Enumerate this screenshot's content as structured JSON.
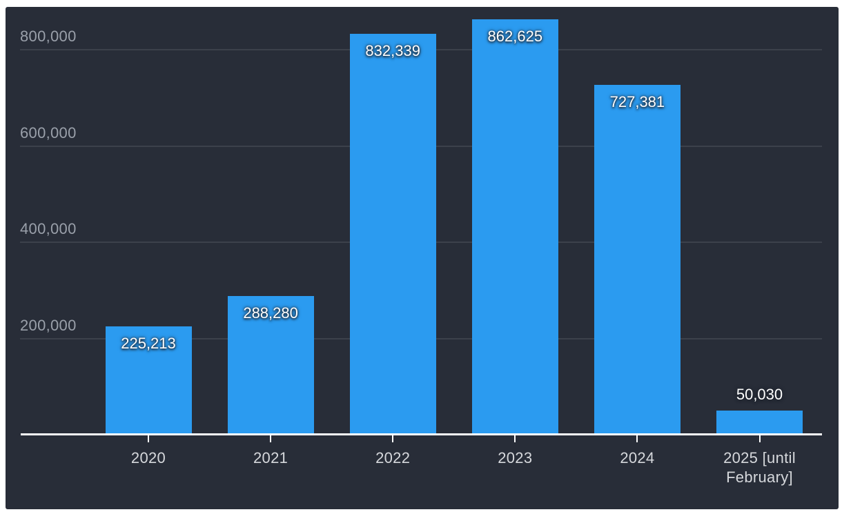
{
  "chart_data": {
    "type": "bar",
    "categories": [
      "2020",
      "2021",
      "2022",
      "2023",
      "2024",
      "2025 [until February]"
    ],
    "values": [
      225213,
      288280,
      832339,
      862625,
      727381,
      50030
    ],
    "value_labels": [
      "225,213",
      "288,280",
      "832,339",
      "862,625",
      "727,381",
      "50,030"
    ],
    "title": "",
    "xlabel": "",
    "ylabel": "",
    "ylim": [
      0,
      880000
    ],
    "grid": true,
    "legend": "none",
    "y_ticks": [
      {
        "value": 200000,
        "label": "200,000"
      },
      {
        "value": 400000,
        "label": "400,000"
      },
      {
        "value": 600000,
        "label": "600,000"
      },
      {
        "value": 800000,
        "label": "800,000"
      }
    ]
  },
  "colors": {
    "frame_background": "#ffffff",
    "panel_background": "#282d38",
    "bar_fill": "#2b9bf0",
    "gridline": "#3c414b",
    "axis_line": "#ffffff",
    "y_tick_label": "#9aa0aa",
    "x_tick_label": "#d6d8dc",
    "data_label": "#ffffff"
  }
}
